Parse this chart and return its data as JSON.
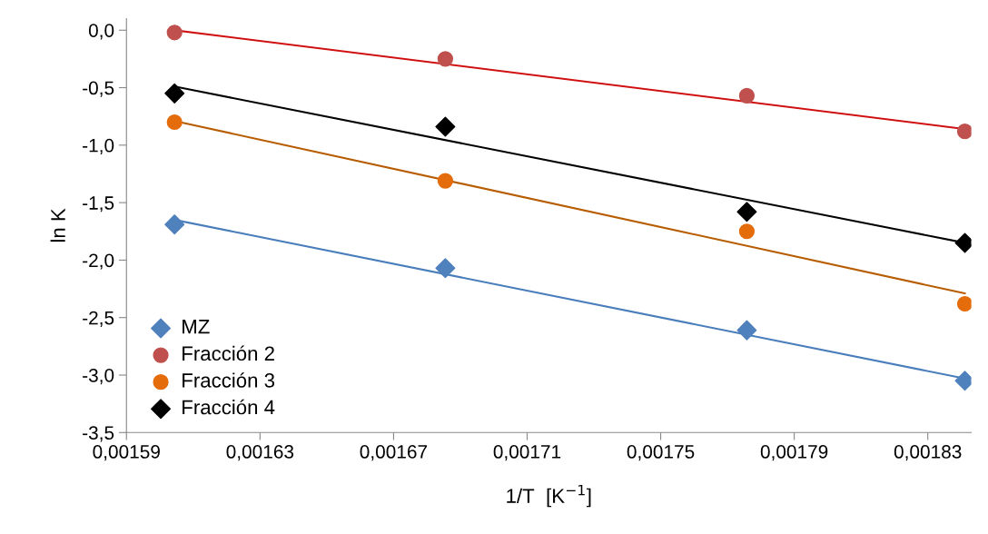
{
  "chart_data": {
    "type": "scatter",
    "xlabel": "1/T  [K$^{−1}$]",
    "ylabel": "ln K",
    "xlim": [
      0.00159,
      0.001843
    ],
    "xticks": [
      {
        "value": 0.00159,
        "label": "0,00159"
      },
      {
        "value": 0.00163,
        "label": "0,00163"
      },
      {
        "value": 0.00167,
        "label": "0,00167"
      },
      {
        "value": 0.00171,
        "label": "0,00171"
      },
      {
        "value": 0.00175,
        "label": "0,00175"
      },
      {
        "value": 0.00179,
        "label": "0,00179"
      },
      {
        "value": 0.00183,
        "label": "0,00183"
      }
    ],
    "ylim": [
      -3.5,
      0.1
    ],
    "yticks": [
      {
        "value": -3.5,
        "label": "-3,5"
      },
      {
        "value": -3.0,
        "label": "-3,0"
      },
      {
        "value": -2.5,
        "label": "-2,5"
      },
      {
        "value": -2.0,
        "label": "-2,0"
      },
      {
        "value": -1.5,
        "label": "-1,5"
      },
      {
        "value": -1.0,
        "label": "-1,0"
      },
      {
        "value": -0.5,
        "label": "-0,5"
      },
      {
        "value": 0.0,
        "label": "0,0"
      }
    ],
    "grid": false,
    "legend": "bottom left",
    "series": [
      {
        "type": "line",
        "color": "#4a7ebb",
        "x": [
          0.0016044,
          0.0018411
        ],
        "values": [
          -1.65,
          -3.03
        ]
      },
      {
        "type": "line",
        "color": "#d01010",
        "x": [
          0.0016044,
          0.0018411
        ],
        "values": [
          0.0,
          -0.86
        ]
      },
      {
        "type": "line",
        "color": "#b85c00",
        "x": [
          0.0016044,
          0.0018411
        ],
        "values": [
          -0.79,
          -2.29
        ]
      },
      {
        "type": "line",
        "color": "#000000",
        "x": [
          0.0016044,
          0.0018411
        ],
        "values": [
          -0.49,
          -1.85
        ]
      },
      {
        "name": "MZ",
        "marker": "diamond",
        "color": "#4f81bd",
        "x": [
          0.0016044,
          0.0016855,
          0.0017758,
          0.0018411
        ],
        "values": [
          -1.69,
          -2.07,
          -2.61,
          -3.05
        ]
      },
      {
        "name": "Fracción 2",
        "marker": "circle",
        "color": "#c0504d",
        "x": [
          0.0016044,
          0.0016855,
          0.0017758,
          0.0018411
        ],
        "values": [
          -0.02,
          -0.25,
          -0.57,
          -0.88
        ]
      },
      {
        "name": "Fracción 3",
        "marker": "circle",
        "color": "#e46c0a",
        "x": [
          0.0016044,
          0.0016855,
          0.0017758,
          0.0018411
        ],
        "values": [
          -0.8,
          -1.31,
          -1.75,
          -2.38
        ]
      },
      {
        "name": "Fracción 4",
        "marker": "diamond",
        "color": "#000000",
        "x": [
          0.0016044,
          0.0016855,
          0.0017758,
          0.0018411
        ],
        "values": [
          -0.55,
          -0.84,
          -1.58,
          -1.85
        ]
      }
    ]
  }
}
